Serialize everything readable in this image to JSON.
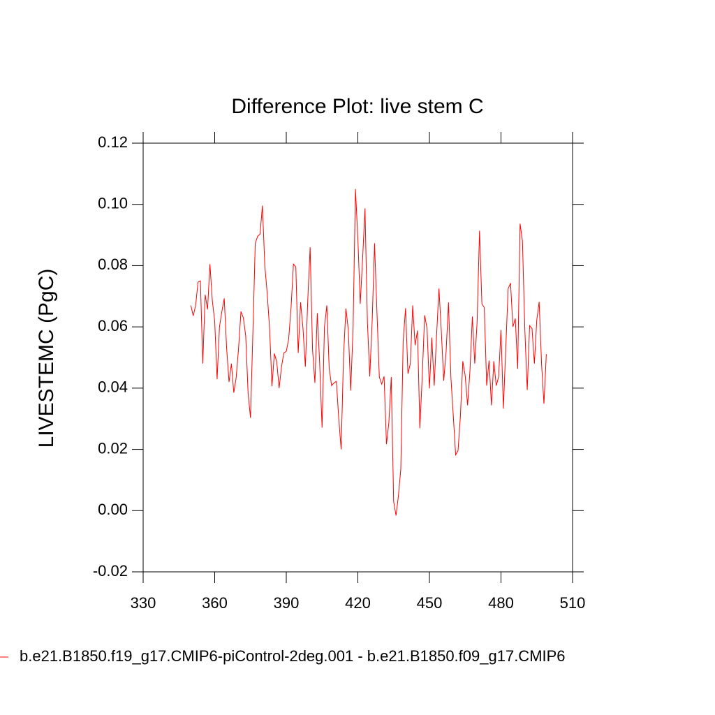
{
  "chart_data": {
    "type": "line",
    "title": "Difference Plot: live stem C",
    "y_label": "LIVESTEMC  (PgC)",
    "x": [
      350,
      351,
      352,
      353,
      354,
      355,
      356,
      357,
      358,
      359,
      360,
      361,
      362,
      363,
      364,
      365,
      366,
      367,
      368,
      369,
      370,
      371,
      372,
      373,
      374,
      375,
      376,
      377,
      378,
      379,
      380,
      381,
      382,
      383,
      384,
      385,
      386,
      387,
      388,
      389,
      390,
      391,
      392,
      393,
      394,
      395,
      396,
      397,
      398,
      399,
      400,
      401,
      402,
      403,
      404,
      405,
      406,
      407,
      408,
      409,
      410,
      411,
      412,
      413,
      414,
      415,
      416,
      417,
      418,
      419,
      420,
      421,
      422,
      423,
      424,
      425,
      426,
      427,
      428,
      429,
      430,
      431,
      432,
      433,
      434,
      435,
      436,
      437,
      438,
      439,
      440,
      441,
      442,
      443,
      444,
      445,
      446,
      447,
      448,
      449,
      450,
      451,
      452,
      453,
      454,
      455,
      456,
      457,
      458,
      459,
      460,
      461,
      462,
      463,
      464,
      465,
      466,
      467,
      468,
      469,
      470,
      471,
      472,
      473,
      474,
      475,
      476,
      477,
      478,
      479,
      480,
      481,
      482,
      483,
      484,
      485,
      486,
      487,
      488,
      489,
      490,
      491,
      492,
      493,
      494,
      495,
      496,
      497,
      498,
      499
    ],
    "series": [
      {
        "name": "b.e21.B1850.f19_g17.CMIP6-piControl-2deg.001 - b.e21.B1850.f09_g17.CMIP6",
        "color": "#ff0000",
        "values": [
          0.067,
          0.0636,
          0.067,
          0.0746,
          0.075,
          0.048,
          0.0705,
          0.0657,
          0.0805,
          0.0686,
          0.0618,
          0.0429,
          0.06,
          0.065,
          0.0693,
          0.053,
          0.042,
          0.048,
          0.0385,
          0.0435,
          0.053,
          0.065,
          0.063,
          0.057,
          0.0383,
          0.0303,
          0.058,
          0.0873,
          0.0896,
          0.0903,
          0.0996,
          0.08,
          0.071,
          0.0595,
          0.0406,
          0.0513,
          0.0486,
          0.04,
          0.047,
          0.0515,
          0.052,
          0.056,
          0.0663,
          0.0805,
          0.0796,
          0.0515,
          0.068,
          0.0595,
          0.047,
          0.0686,
          0.086,
          0.0527,
          0.0417,
          0.0645,
          0.048,
          0.0271,
          0.06,
          0.067,
          0.0463,
          0.0408,
          0.0417,
          0.0422,
          0.03,
          0.02,
          0.0504,
          0.066,
          0.059,
          0.0392,
          0.0595,
          0.105,
          0.089,
          0.0675,
          0.0823,
          0.0987,
          0.0618,
          0.0438,
          0.0618,
          0.0873,
          0.065,
          0.0436,
          0.0413,
          0.0438,
          0.0217,
          0.0287,
          0.0436,
          0.003,
          -0.0016,
          0.0048,
          0.0135,
          0.0554,
          0.0661,
          0.0447,
          0.048,
          0.067,
          0.054,
          0.0588,
          0.0269,
          0.044,
          0.0638,
          0.0595,
          0.0399,
          0.0565,
          0.0408,
          0.0572,
          0.0725,
          0.0584,
          0.0424,
          0.052,
          0.068,
          0.0436,
          0.031,
          0.0182,
          0.0196,
          0.031,
          0.0488,
          0.044,
          0.0344,
          0.0458,
          0.0634,
          0.048,
          0.0618,
          0.0914,
          0.0675,
          0.0663,
          0.0408,
          0.049,
          0.0344,
          0.0488,
          0.0408,
          0.0436,
          0.059,
          0.0333,
          0.053,
          0.0725,
          0.0743,
          0.06,
          0.0627,
          0.0463,
          0.0937,
          0.088,
          0.059,
          0.0394,
          0.0604,
          0.0595,
          0.048,
          0.0622,
          0.0682,
          0.048,
          0.0349,
          0.0511
        ]
      }
    ],
    "xlim": [
      330,
      510
    ],
    "xticks": [
      330,
      360,
      390,
      420,
      450,
      480,
      510
    ],
    "ylim": [
      -0.02,
      0.12
    ],
    "yticks": [
      {
        "value": -0.02,
        "label": "-0.02"
      },
      {
        "value": 0,
        "label": "0.00"
      },
      {
        "value": 0.02,
        "label": "0.02"
      },
      {
        "value": 0.04,
        "label": "0.04"
      },
      {
        "value": 0.06,
        "label": "0.06"
      },
      {
        "value": 0.08,
        "label": "0.08"
      },
      {
        "value": 0.1,
        "label": "0.10"
      },
      {
        "value": 0.12,
        "label": "0.12"
      }
    ],
    "grid": false
  }
}
